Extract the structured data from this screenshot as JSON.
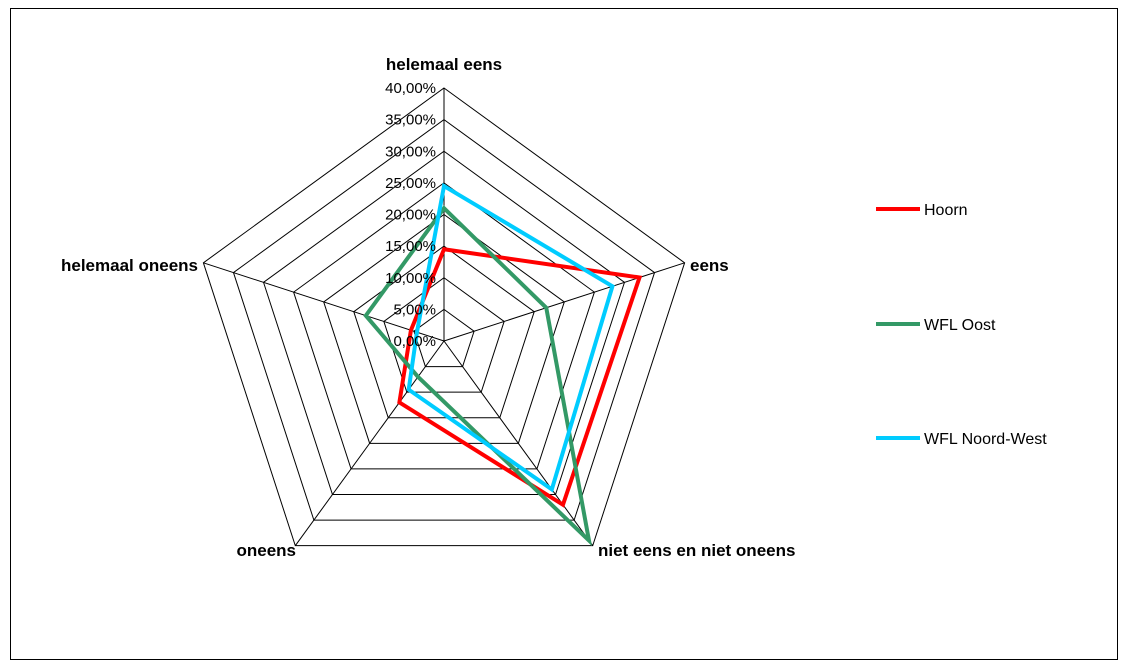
{
  "chart_data": {
    "type": "radar",
    "categories": [
      "helemaal eens",
      "eens",
      "niet eens en niet oneens",
      "oneens",
      "helemaal oneens"
    ],
    "ticks": [
      "0,00%",
      "5,00%",
      "10,00%",
      "15,00%",
      "20,00%",
      "25,00%",
      "30,00%",
      "35,00%",
      "40,00%"
    ],
    "rmax": 40,
    "series": [
      {
        "name": "Hoorn",
        "color": "#ff0000",
        "values": [
          14.5,
          32.5,
          32.0,
          12.0,
          5.5
        ]
      },
      {
        "name": "WFL Oost",
        "color": "#339966",
        "values": [
          21.0,
          17.0,
          39.0,
          7.0,
          13.0
        ]
      },
      {
        "name": "WFL Noord-West",
        "color": "#00ccff",
        "values": [
          24.5,
          28.0,
          29.0,
          9.5,
          4.5
        ]
      }
    ],
    "legend_position": "right",
    "grid": true
  }
}
